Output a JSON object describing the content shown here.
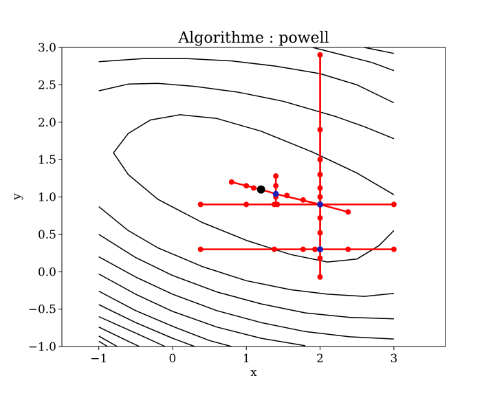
{
  "chart_data": {
    "type": "contour_with_optimization_path",
    "title": "Algorithme : powell",
    "xlabel": "x",
    "ylabel": "y",
    "xlim": [
      -1.5,
      3.7
    ],
    "ylim": [
      -1.0,
      3.0
    ],
    "x_ticks": [
      -1,
      0,
      1,
      2,
      3
    ],
    "y_ticks": [
      -1.0,
      -0.5,
      0.0,
      0.5,
      1.0,
      1.5,
      2.0,
      2.5,
      3.0
    ],
    "x_tick_labels": [
      "−1",
      "0",
      "1",
      "2",
      "3"
    ],
    "y_tick_labels": [
      "−1.0",
      "−0.5",
      "0.0",
      "0.5",
      "1.0",
      "1.5",
      "2.0",
      "2.5",
      "3.0"
    ],
    "grid": false,
    "colors": {
      "contour": "#000000",
      "path": "#ff0000",
      "iterate": "#1f1fb4",
      "optimum": "#000000"
    },
    "contour_levels": [
      {
        "level": 1,
        "curve": [
          [
            -0.8,
            1.59
          ],
          [
            -0.6,
            1.85
          ],
          [
            -0.3,
            2.03
          ],
          [
            0.1,
            2.1
          ],
          [
            0.6,
            2.05
          ],
          [
            1.2,
            1.88
          ],
          [
            1.9,
            1.6
          ],
          [
            2.5,
            1.32
          ],
          [
            3.0,
            1.03
          ]
        ]
      },
      {
        "level": 2,
        "curve": [
          [
            -1.0,
            2.42
          ],
          [
            -0.6,
            2.51
          ],
          [
            -0.2,
            2.52
          ],
          [
            0.3,
            2.48
          ],
          [
            0.9,
            2.4
          ],
          [
            1.5,
            2.28
          ],
          [
            2.2,
            2.08
          ],
          [
            2.6,
            1.94
          ],
          [
            3.0,
            1.78
          ]
        ]
      },
      {
        "level": 3,
        "curve": [
          [
            -1.0,
            2.81
          ],
          [
            -0.4,
            2.85
          ],
          [
            0.2,
            2.85
          ],
          [
            0.8,
            2.82
          ],
          [
            1.4,
            2.75
          ],
          [
            2.0,
            2.65
          ],
          [
            2.5,
            2.5
          ],
          [
            3.0,
            2.26
          ]
        ]
      },
      {
        "level": 4,
        "curve": [
          [
            1.9,
            3.0
          ],
          [
            2.3,
            2.9
          ],
          [
            2.7,
            2.8
          ],
          [
            3.0,
            2.69
          ]
        ]
      },
      {
        "level": 5,
        "curve": [
          [
            2.6,
            3.0
          ],
          [
            2.8,
            2.96
          ],
          [
            3.0,
            2.92
          ]
        ]
      },
      {
        "level": 1,
        "curve": [
          [
            -0.8,
            1.59
          ],
          [
            -0.6,
            1.3
          ],
          [
            -0.2,
            0.97
          ],
          [
            0.4,
            0.66
          ],
          [
            1.0,
            0.42
          ],
          [
            1.6,
            0.23
          ],
          [
            2.1,
            0.13
          ],
          [
            2.5,
            0.17
          ],
          [
            2.8,
            0.35
          ],
          [
            3.0,
            0.55
          ]
        ]
      },
      {
        "level": 2,
        "curve": [
          [
            -1.0,
            0.87
          ],
          [
            -0.6,
            0.55
          ],
          [
            -0.2,
            0.32
          ],
          [
            0.4,
            0.07
          ],
          [
            1.0,
            -0.12
          ],
          [
            1.6,
            -0.24
          ],
          [
            2.1,
            -0.3
          ],
          [
            2.6,
            -0.33
          ],
          [
            3.0,
            -0.29
          ]
        ]
      },
      {
        "level": 3,
        "curve": [
          [
            -1.0,
            0.5
          ],
          [
            -0.5,
            0.19
          ],
          [
            0.0,
            -0.05
          ],
          [
            0.6,
            -0.27
          ],
          [
            1.2,
            -0.43
          ],
          [
            1.8,
            -0.55
          ],
          [
            2.4,
            -0.61
          ],
          [
            3.0,
            -0.63
          ]
        ]
      },
      {
        "level": 4,
        "curve": [
          [
            -1.0,
            0.2
          ],
          [
            -0.5,
            -0.07
          ],
          [
            0.0,
            -0.3
          ],
          [
            0.6,
            -0.52
          ],
          [
            1.2,
            -0.68
          ],
          [
            1.8,
            -0.8
          ],
          [
            2.4,
            -0.87
          ],
          [
            3.0,
            -0.9
          ]
        ]
      },
      {
        "level": 5,
        "curve": [
          [
            -1.0,
            -0.03
          ],
          [
            -0.5,
            -0.3
          ],
          [
            0.0,
            -0.53
          ],
          [
            0.6,
            -0.74
          ],
          [
            1.2,
            -0.89
          ],
          [
            1.8,
            -0.99
          ]
        ]
      },
      {
        "level": 6,
        "curve": [
          [
            -1.0,
            -0.26
          ],
          [
            -0.5,
            -0.52
          ],
          [
            0.0,
            -0.73
          ],
          [
            0.5,
            -0.92
          ],
          [
            0.8,
            -1.0
          ]
        ]
      },
      {
        "level": 7,
        "curve": [
          [
            -1.0,
            -0.44
          ],
          [
            -0.5,
            -0.68
          ],
          [
            0.0,
            -0.89
          ],
          [
            0.3,
            -1.0
          ]
        ]
      },
      {
        "level": 8,
        "curve": [
          [
            -1.0,
            -0.6
          ],
          [
            -0.5,
            -0.82
          ],
          [
            -0.1,
            -1.0
          ]
        ]
      },
      {
        "level": 9,
        "curve": [
          [
            -1.0,
            -0.74
          ],
          [
            -0.6,
            -0.93
          ],
          [
            -0.45,
            -1.0
          ]
        ]
      },
      {
        "level": 10,
        "curve": [
          [
            -1.0,
            -0.86
          ],
          [
            -0.75,
            -1.0
          ]
        ]
      },
      {
        "level": 11,
        "curve": [
          [
            -1.0,
            -0.93
          ],
          [
            -0.88,
            -1.0
          ]
        ]
      }
    ],
    "path_segments": [
      [
        [
          2.0,
          2.9
        ],
        [
          2.0,
          -0.07
        ]
      ],
      [
        [
          2.0,
          2.9
        ],
        [
          2.0,
          1.9
        ],
        [
          2.0,
          1.5
        ],
        [
          2.0,
          1.3
        ],
        [
          2.0,
          1.12
        ],
        [
          2.0,
          1.0
        ],
        [
          2.0,
          0.9
        ],
        [
          2.0,
          0.72
        ],
        [
          2.0,
          0.52
        ],
        [
          2.0,
          0.3
        ],
        [
          2.0,
          0.18
        ],
        [
          2.0,
          -0.07
        ]
      ],
      [
        [
          0.38,
          0.3
        ],
        [
          3.0,
          0.3
        ]
      ],
      [
        [
          0.38,
          0.9
        ],
        [
          3.0,
          0.9
        ]
      ],
      [
        [
          2.38,
          0.8
        ],
        [
          2.0,
          0.9
        ],
        [
          1.4,
          1.04
        ],
        [
          1.2,
          1.1
        ],
        [
          1.0,
          1.15
        ],
        [
          0.8,
          1.2
        ]
      ],
      [
        [
          1.4,
          1.28
        ],
        [
          1.4,
          0.9
        ]
      ]
    ],
    "path_points": [
      [
        2.0,
        2.9
      ],
      [
        2.0,
        1.9
      ],
      [
        2.0,
        1.5
      ],
      [
        2.0,
        1.3
      ],
      [
        2.0,
        1.12
      ],
      [
        2.0,
        1.0
      ],
      [
        2.0,
        0.9
      ],
      [
        2.0,
        0.72
      ],
      [
        2.0,
        0.52
      ],
      [
        2.0,
        0.3
      ],
      [
        2.0,
        0.18
      ],
      [
        2.0,
        -0.07
      ],
      [
        0.38,
        0.3
      ],
      [
        1.38,
        0.3
      ],
      [
        1.77,
        0.3
      ],
      [
        1.93,
        0.3
      ],
      [
        2.38,
        0.3
      ],
      [
        3.0,
        0.3
      ],
      [
        0.38,
        0.9
      ],
      [
        1.0,
        0.9
      ],
      [
        1.38,
        0.9
      ],
      [
        1.42,
        0.9
      ],
      [
        2.0,
        0.9
      ],
      [
        3.0,
        0.9
      ],
      [
        2.38,
        0.8
      ],
      [
        1.77,
        0.96
      ],
      [
        1.55,
        1.02
      ],
      [
        1.4,
        1.04
      ],
      [
        1.1,
        1.12
      ],
      [
        1.0,
        1.15
      ],
      [
        0.8,
        1.2
      ],
      [
        1.4,
        1.28
      ],
      [
        1.4,
        1.15
      ],
      [
        1.4,
        1.0
      ]
    ],
    "iterates": [
      [
        2.0,
        0.3
      ],
      [
        2.0,
        0.9
      ],
      [
        1.4,
        1.04
      ]
    ],
    "optimum": [
      1.2,
      1.1
    ]
  }
}
